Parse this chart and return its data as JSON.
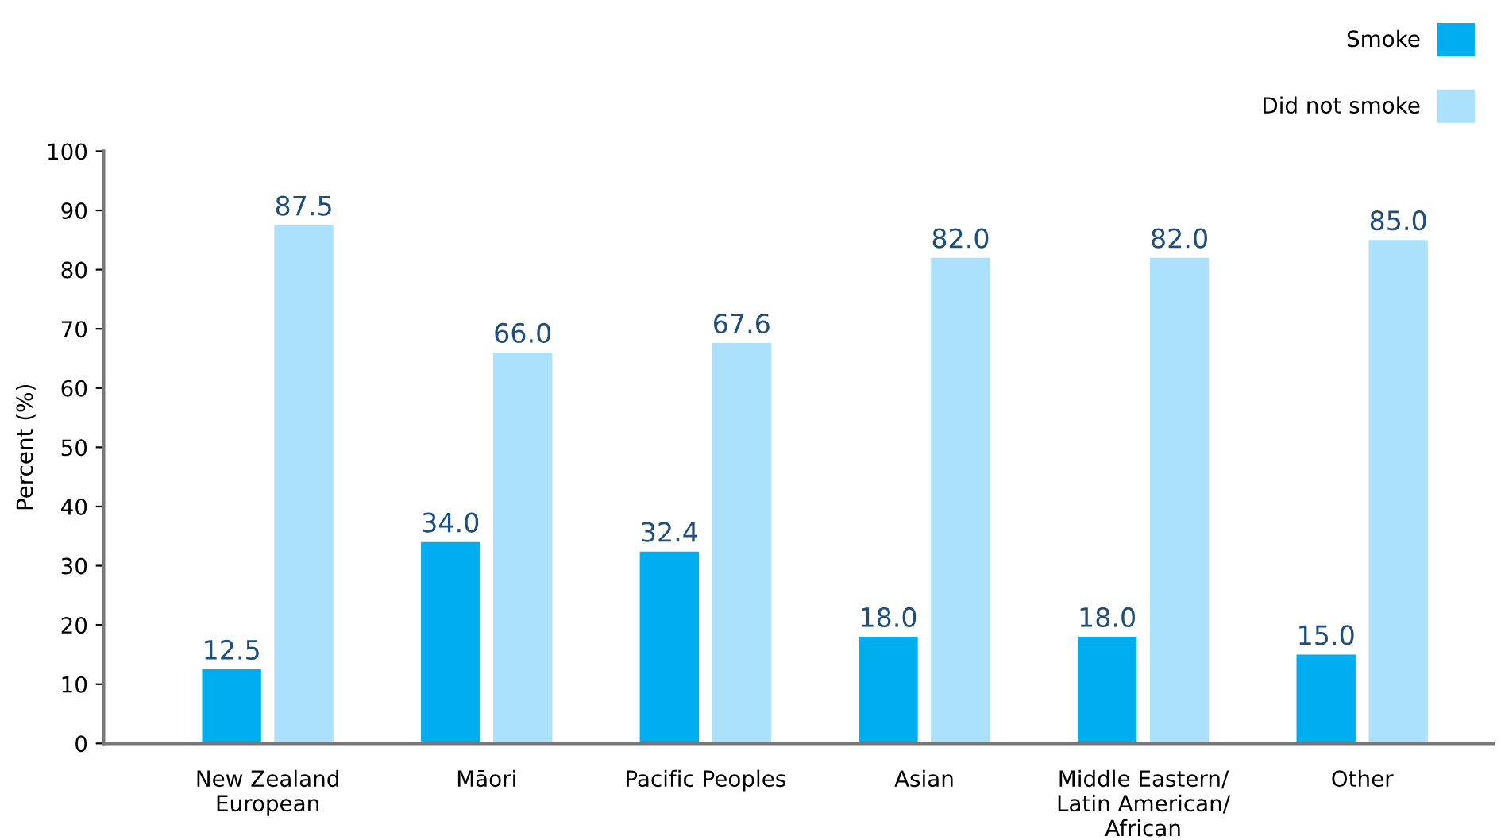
{
  "chart_data": {
    "type": "bar",
    "ylabel": "Percent (%)",
    "categories": [
      "New Zealand\nEuropean",
      "Māori",
      "Pacific Peoples",
      "Asian",
      "Middle Eastern/\nLatin American/\nAfrican",
      "Other"
    ],
    "series": [
      {
        "name": "Smoke",
        "color": "#00aeef",
        "values": [
          12.5,
          34.0,
          32.4,
          18.0,
          18.0,
          15.0
        ],
        "value_labels": [
          "12.5",
          "34.0",
          "32.4",
          "18.0",
          "18.0",
          "15.0"
        ]
      },
      {
        "name": "Did not smoke",
        "color": "#abe1fa",
        "values": [
          87.5,
          66.0,
          67.6,
          82.0,
          82.0,
          85.0
        ],
        "value_labels": [
          "87.5",
          "66.0",
          "67.6",
          "82.0",
          "82.0",
          "85.0"
        ]
      }
    ],
    "ylim": [
      0,
      100
    ],
    "yticks": [
      0,
      10,
      20,
      30,
      40,
      50,
      60,
      70,
      80,
      90,
      100
    ],
    "grid": false,
    "legend": "top right"
  }
}
